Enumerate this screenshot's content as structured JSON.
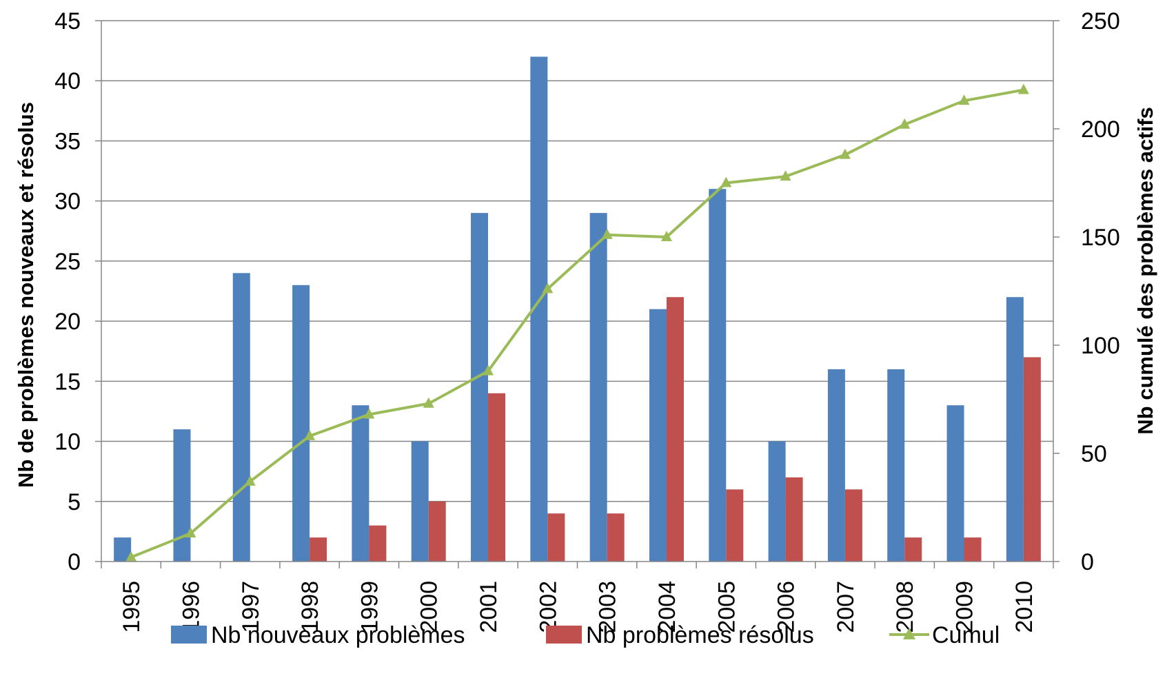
{
  "chart_data": {
    "type": "bar",
    "categories": [
      "1995",
      "1996",
      "1997",
      "1998",
      "1999",
      "2000",
      "2001",
      "2002",
      "2003",
      "2004",
      "2005",
      "2006",
      "2007",
      "2008",
      "2009",
      "2010"
    ],
    "series": [
      {
        "name": "Nb nouveaux problèmes",
        "type": "bar",
        "axis": "left",
        "color": "#4f81bd",
        "values": [
          2,
          11,
          24,
          23,
          13,
          10,
          29,
          42,
          29,
          21,
          31,
          10,
          16,
          16,
          13,
          22
        ]
      },
      {
        "name": "Nb problèmes résolus",
        "type": "bar",
        "axis": "left",
        "color": "#c0504d",
        "values": [
          0,
          0,
          0,
          2,
          3,
          5,
          14,
          4,
          4,
          22,
          6,
          7,
          6,
          2,
          2,
          17
        ]
      },
      {
        "name": "Cumul",
        "type": "line",
        "axis": "right",
        "color": "#9bbb59",
        "marker": "triangle",
        "values": [
          2,
          13,
          37,
          58,
          68,
          73,
          88,
          126,
          151,
          150,
          175,
          178,
          188,
          202,
          213,
          218
        ]
      }
    ],
    "ylabel": "Nb de problèmes nouveaux et résolus",
    "y2label": "Nb cumulé des problèmes actifs",
    "ylim": [
      0,
      45
    ],
    "y2lim": [
      0,
      250
    ],
    "yticks": [
      "0",
      "5",
      "10",
      "15",
      "20",
      "25",
      "30",
      "35",
      "40",
      "45"
    ],
    "y2ticks": [
      "0",
      "50",
      "100",
      "150",
      "200",
      "250"
    ],
    "grid": true,
    "legend_position": "bottom"
  }
}
